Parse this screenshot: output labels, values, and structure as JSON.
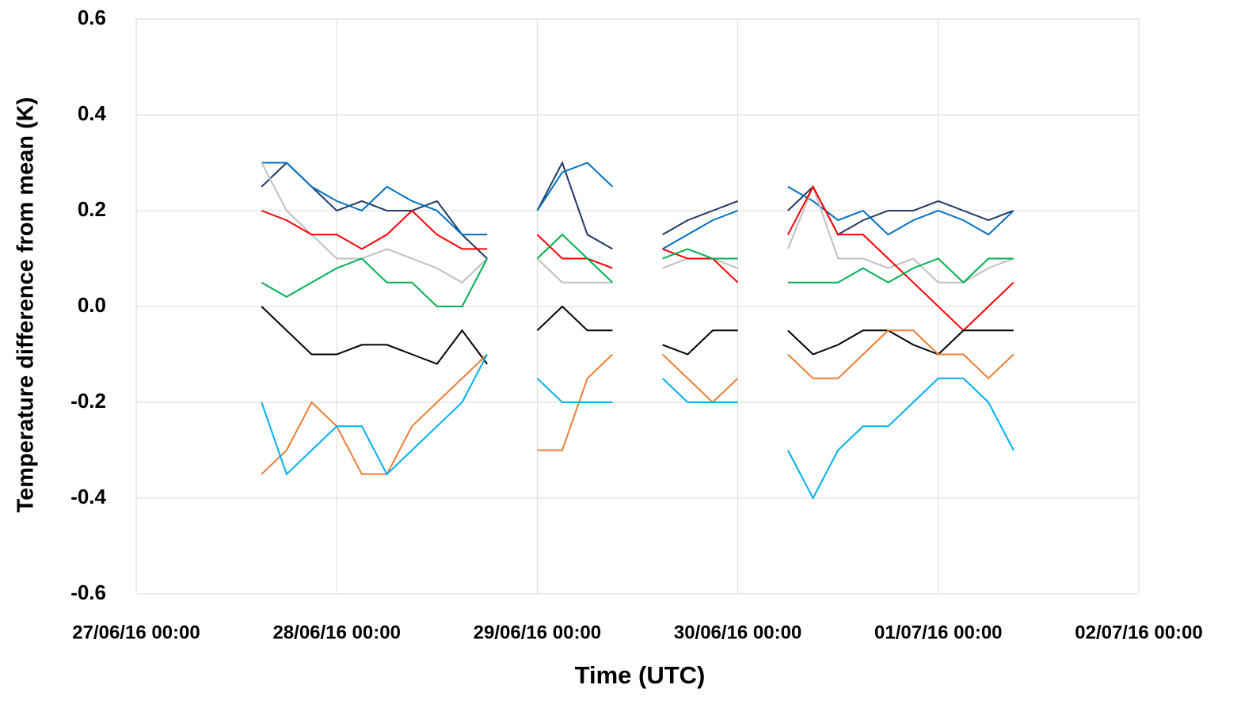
{
  "chart_data": {
    "type": "line",
    "y_label": "Temperature difference from mean (K)",
    "x_label": "Time (UTC)",
    "x": [
      "27/06/16 15:00",
      "27/06/16 18:00",
      "27/06/16 21:00",
      "28/06/16 00:00",
      "28/06/16 03:00",
      "28/06/16 06:00",
      "28/06/16 09:00",
      "28/06/16 12:00",
      "28/06/16 15:00",
      "28/06/16 18:00",
      "28/06/16 21:00",
      "29/06/16 00:00",
      "29/06/16 03:00",
      "29/06/16 06:00",
      "29/06/16 09:00",
      "29/06/16 12:00",
      "29/06/16 15:00",
      "29/06/16 18:00",
      "29/06/16 21:00",
      "30/06/16 00:00",
      "30/06/16 03:00",
      "30/06/16 06:00",
      "30/06/16 09:00",
      "30/06/16 12:00",
      "30/06/16 15:00",
      "30/06/16 18:00",
      "30/06/16 21:00",
      "01/07/16 00:00",
      "01/07/16 03:00",
      "01/07/16 06:00",
      "01/07/16 09:00"
    ],
    "series": [
      {
        "color": "#203864",
        "values": [
          0.25,
          0.3,
          0.25,
          0.2,
          0.22,
          0.2,
          0.2,
          0.22,
          0.15,
          0.1,
          null,
          0.2,
          0.3,
          0.15,
          0.12,
          null,
          0.15,
          0.18,
          0.2,
          0.22,
          null,
          0.2,
          0.25,
          0.15,
          0.18,
          0.2,
          0.2,
          0.22,
          0.2,
          0.18,
          0.2
        ]
      },
      {
        "color": "#0070c0",
        "values": [
          0.3,
          0.3,
          0.25,
          0.22,
          0.2,
          0.25,
          0.22,
          0.2,
          0.15,
          0.15,
          null,
          0.2,
          0.28,
          0.3,
          0.25,
          null,
          0.12,
          0.15,
          0.18,
          0.2,
          null,
          0.25,
          0.22,
          0.18,
          0.2,
          0.15,
          0.18,
          0.2,
          0.18,
          0.15,
          0.2
        ]
      },
      {
        "color": "#bfbfbf",
        "values": [
          0.3,
          0.2,
          0.15,
          0.1,
          0.1,
          0.12,
          0.1,
          0.08,
          0.05,
          0.1,
          null,
          0.1,
          0.05,
          0.05,
          0.05,
          null,
          0.08,
          0.1,
          0.1,
          0.08,
          null,
          0.12,
          0.25,
          0.1,
          0.1,
          0.08,
          0.1,
          0.05,
          0.05,
          0.08,
          0.1
        ]
      },
      {
        "color": "#ff0000",
        "values": [
          0.2,
          0.18,
          0.15,
          0.15,
          0.12,
          0.15,
          0.2,
          0.15,
          0.12,
          0.12,
          null,
          0.15,
          0.1,
          0.1,
          0.08,
          null,
          0.12,
          0.1,
          0.1,
          0.05,
          null,
          0.15,
          0.25,
          0.15,
          0.15,
          0.1,
          0.05,
          0.0,
          -0.05,
          0.0,
          0.05
        ]
      },
      {
        "color": "#000000",
        "values": [
          0.0,
          -0.05,
          -0.1,
          -0.1,
          -0.08,
          -0.08,
          -0.1,
          -0.12,
          -0.05,
          -0.12,
          null,
          -0.05,
          0.0,
          -0.05,
          -0.05,
          null,
          -0.08,
          -0.1,
          -0.05,
          -0.05,
          null,
          -0.05,
          -0.1,
          -0.08,
          -0.05,
          -0.05,
          -0.08,
          -0.1,
          -0.05,
          -0.05,
          -0.05
        ]
      },
      {
        "color": "#00b050",
        "values": [
          0.05,
          0.02,
          0.05,
          0.08,
          0.1,
          0.05,
          0.05,
          0.0,
          0.0,
          0.1,
          null,
          0.1,
          0.15,
          0.1,
          0.05,
          null,
          0.1,
          0.12,
          0.1,
          0.1,
          null,
          0.05,
          0.05,
          0.05,
          0.08,
          0.05,
          0.08,
          0.1,
          0.05,
          0.1,
          0.1
        ]
      },
      {
        "color": "#ed7d31",
        "values": [
          -0.35,
          -0.3,
          -0.2,
          -0.25,
          -0.35,
          -0.35,
          -0.25,
          -0.2,
          -0.15,
          -0.1,
          null,
          -0.3,
          -0.3,
          -0.15,
          -0.1,
          null,
          -0.1,
          -0.15,
          -0.2,
          -0.15,
          null,
          -0.1,
          -0.15,
          -0.15,
          -0.1,
          -0.05,
          -0.05,
          -0.1,
          -0.1,
          -0.15,
          -0.1
        ]
      },
      {
        "color": "#00b0f0",
        "values": [
          -0.2,
          -0.35,
          -0.3,
          -0.25,
          -0.25,
          -0.35,
          -0.3,
          -0.25,
          -0.2,
          -0.1,
          null,
          -0.15,
          -0.2,
          -0.2,
          -0.2,
          null,
          -0.15,
          -0.2,
          -0.2,
          -0.2,
          null,
          -0.3,
          -0.4,
          -0.3,
          -0.25,
          -0.25,
          -0.2,
          -0.15,
          -0.15,
          -0.2,
          -0.3
        ]
      }
    ],
    "xlim": [
      "27/06/16 00:00",
      "02/07/16 00:00"
    ],
    "xticks": [
      "27/06/16 00:00",
      "28/06/16 00:00",
      "29/06/16 00:00",
      "30/06/16 00:00",
      "01/07/16 00:00",
      "02/07/16 00:00"
    ],
    "ylim": [
      -0.6,
      0.6
    ],
    "yticks": [
      -0.6,
      -0.4,
      -0.2,
      {
        "value": 0,
        "label": "0.0"
      },
      0.2,
      0.4,
      0.6
    ],
    "grid": true
  }
}
